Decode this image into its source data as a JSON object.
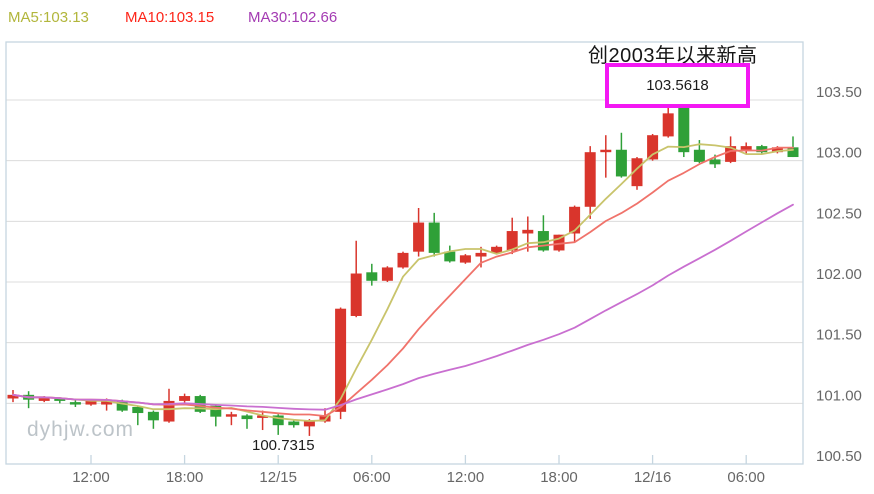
{
  "legend": {
    "ma5": {
      "label": "MA5:103.13",
      "color": "#b2b63c"
    },
    "ma10": {
      "label": "MA10:103.15",
      "color": "#fd2519"
    },
    "ma30": {
      "label": "MA30:102.66",
      "color": "#a43bb3"
    }
  },
  "annotation": {
    "title": "创2003年以来新高",
    "value": "103.5618",
    "box_color": "#f318f3"
  },
  "low_label": "100.7315",
  "watermark": "dyhjw.com",
  "chart_data": {
    "type": "candlestick",
    "title": "",
    "ylabel": "",
    "xlabel": "",
    "ylim": [
      100.5,
      103.98
    ],
    "grid": true,
    "legend_position": "top-left",
    "y_ticks": [
      "103.50",
      "103.00",
      "102.50",
      "102.00",
      "101.50",
      "101.00",
      "100.50"
    ],
    "x_tick_labels": [
      "12:00",
      "18:00",
      "12/15",
      "06:00",
      "12:00",
      "18:00",
      "12/16",
      "06:00"
    ],
    "x_tick_indices": [
      5,
      11,
      17,
      23,
      29,
      35,
      41,
      47
    ],
    "up_color": "#d9352c",
    "down_color": "#2fa038",
    "grid_color": "#dcdcdc",
    "axis_color": "#c6d6e0",
    "tick_text_color": "#676767",
    "ma_periods": [
      5,
      10,
      30
    ],
    "ma_line_colors": [
      "#c9c46c",
      "#f0736b",
      "#c96fd0"
    ],
    "high_point": {
      "candle_index": 42,
      "value": 103.5618
    },
    "low_point": {
      "candle_index": 19,
      "value": 100.7315
    },
    "candles_format": [
      "open",
      "high",
      "low",
      "close"
    ],
    "candles": [
      [
        101.04,
        101.11,
        101.01,
        101.07
      ],
      [
        101.07,
        101.1,
        100.96,
        101.03
      ],
      [
        101.02,
        101.06,
        101.01,
        101.05
      ],
      [
        101.04,
        101.05,
        101.0,
        101.02
      ],
      [
        101.01,
        101.03,
        100.97,
        100.99
      ],
      [
        100.99,
        101.03,
        100.98,
        101.02
      ],
      [
        100.99,
        101.04,
        100.94,
        101.02
      ],
      [
        101.02,
        101.03,
        100.93,
        100.94
      ],
      [
        100.97,
        100.98,
        100.82,
        100.92
      ],
      [
        100.93,
        100.94,
        100.79,
        100.86
      ],
      [
        100.85,
        101.12,
        100.84,
        101.02
      ],
      [
        101.02,
        101.08,
        101.0,
        101.06
      ],
      [
        101.06,
        101.07,
        100.92,
        100.93
      ],
      [
        100.98,
        100.99,
        100.81,
        100.89
      ],
      [
        100.89,
        100.93,
        100.82,
        100.91
      ],
      [
        100.9,
        100.91,
        100.79,
        100.87
      ],
      [
        100.88,
        100.94,
        100.78,
        100.9
      ],
      [
        100.9,
        100.91,
        100.74,
        100.82
      ],
      [
        100.85,
        100.86,
        100.8,
        100.82
      ],
      [
        100.81,
        100.87,
        100.7315,
        100.86
      ],
      [
        100.85,
        100.96,
        100.84,
        100.9
      ],
      [
        100.93,
        101.79,
        100.87,
        101.78
      ],
      [
        101.72,
        102.34,
        101.71,
        102.07
      ],
      [
        102.08,
        102.15,
        101.97,
        102.01
      ],
      [
        102.01,
        102.13,
        102.0,
        102.12
      ],
      [
        102.12,
        102.25,
        102.11,
        102.24
      ],
      [
        102.25,
        102.61,
        102.21,
        102.49
      ],
      [
        102.49,
        102.57,
        102.21,
        102.24
      ],
      [
        102.25,
        102.3,
        102.16,
        102.17
      ],
      [
        102.16,
        102.23,
        102.15,
        102.22
      ],
      [
        102.21,
        102.29,
        102.12,
        102.24
      ],
      [
        102.24,
        102.3,
        102.23,
        102.29
      ],
      [
        102.26,
        102.53,
        102.23,
        102.42
      ],
      [
        102.4,
        102.54,
        102.25,
        102.43
      ],
      [
        102.42,
        102.55,
        102.25,
        102.26
      ],
      [
        102.26,
        102.39,
        102.25,
        102.39
      ],
      [
        102.4,
        102.63,
        102.33,
        102.62
      ],
      [
        102.62,
        103.12,
        102.52,
        103.07
      ],
      [
        103.07,
        103.21,
        102.86,
        103.09
      ],
      [
        103.09,
        103.23,
        102.86,
        102.87
      ],
      [
        102.79,
        103.03,
        102.76,
        103.02
      ],
      [
        103.01,
        103.22,
        103.0,
        103.21
      ],
      [
        103.2,
        103.5618,
        103.19,
        103.39
      ],
      [
        103.46,
        103.47,
        103.03,
        103.07
      ],
      [
        103.09,
        103.17,
        102.98,
        102.99
      ],
      [
        103.01,
        103.05,
        102.94,
        102.97
      ],
      [
        102.99,
        103.2,
        102.98,
        103.12
      ],
      [
        103.09,
        103.15,
        103.05,
        103.12
      ],
      [
        103.12,
        103.13,
        103.06,
        103.07
      ],
      [
        103.07,
        103.12,
        103.06,
        103.11
      ],
      [
        103.11,
        103.2,
        103.03,
        103.03
      ]
    ]
  }
}
